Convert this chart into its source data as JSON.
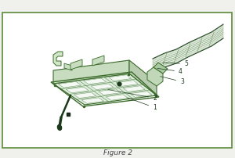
{
  "bg_color": "#f0f0ec",
  "border_color": "#5a8a3a",
  "border_linewidth": 1.2,
  "caption": "Figure 2",
  "caption_color": "#444444",
  "caption_fontsize": 6.5,
  "mc": "#3a6a2a",
  "dc": "#1a3a1a",
  "fc_light": "#e8f0e4",
  "fc_mid": "#c8dcc0",
  "label_color": "#2a4a2a",
  "label_fontsize": 5.5
}
